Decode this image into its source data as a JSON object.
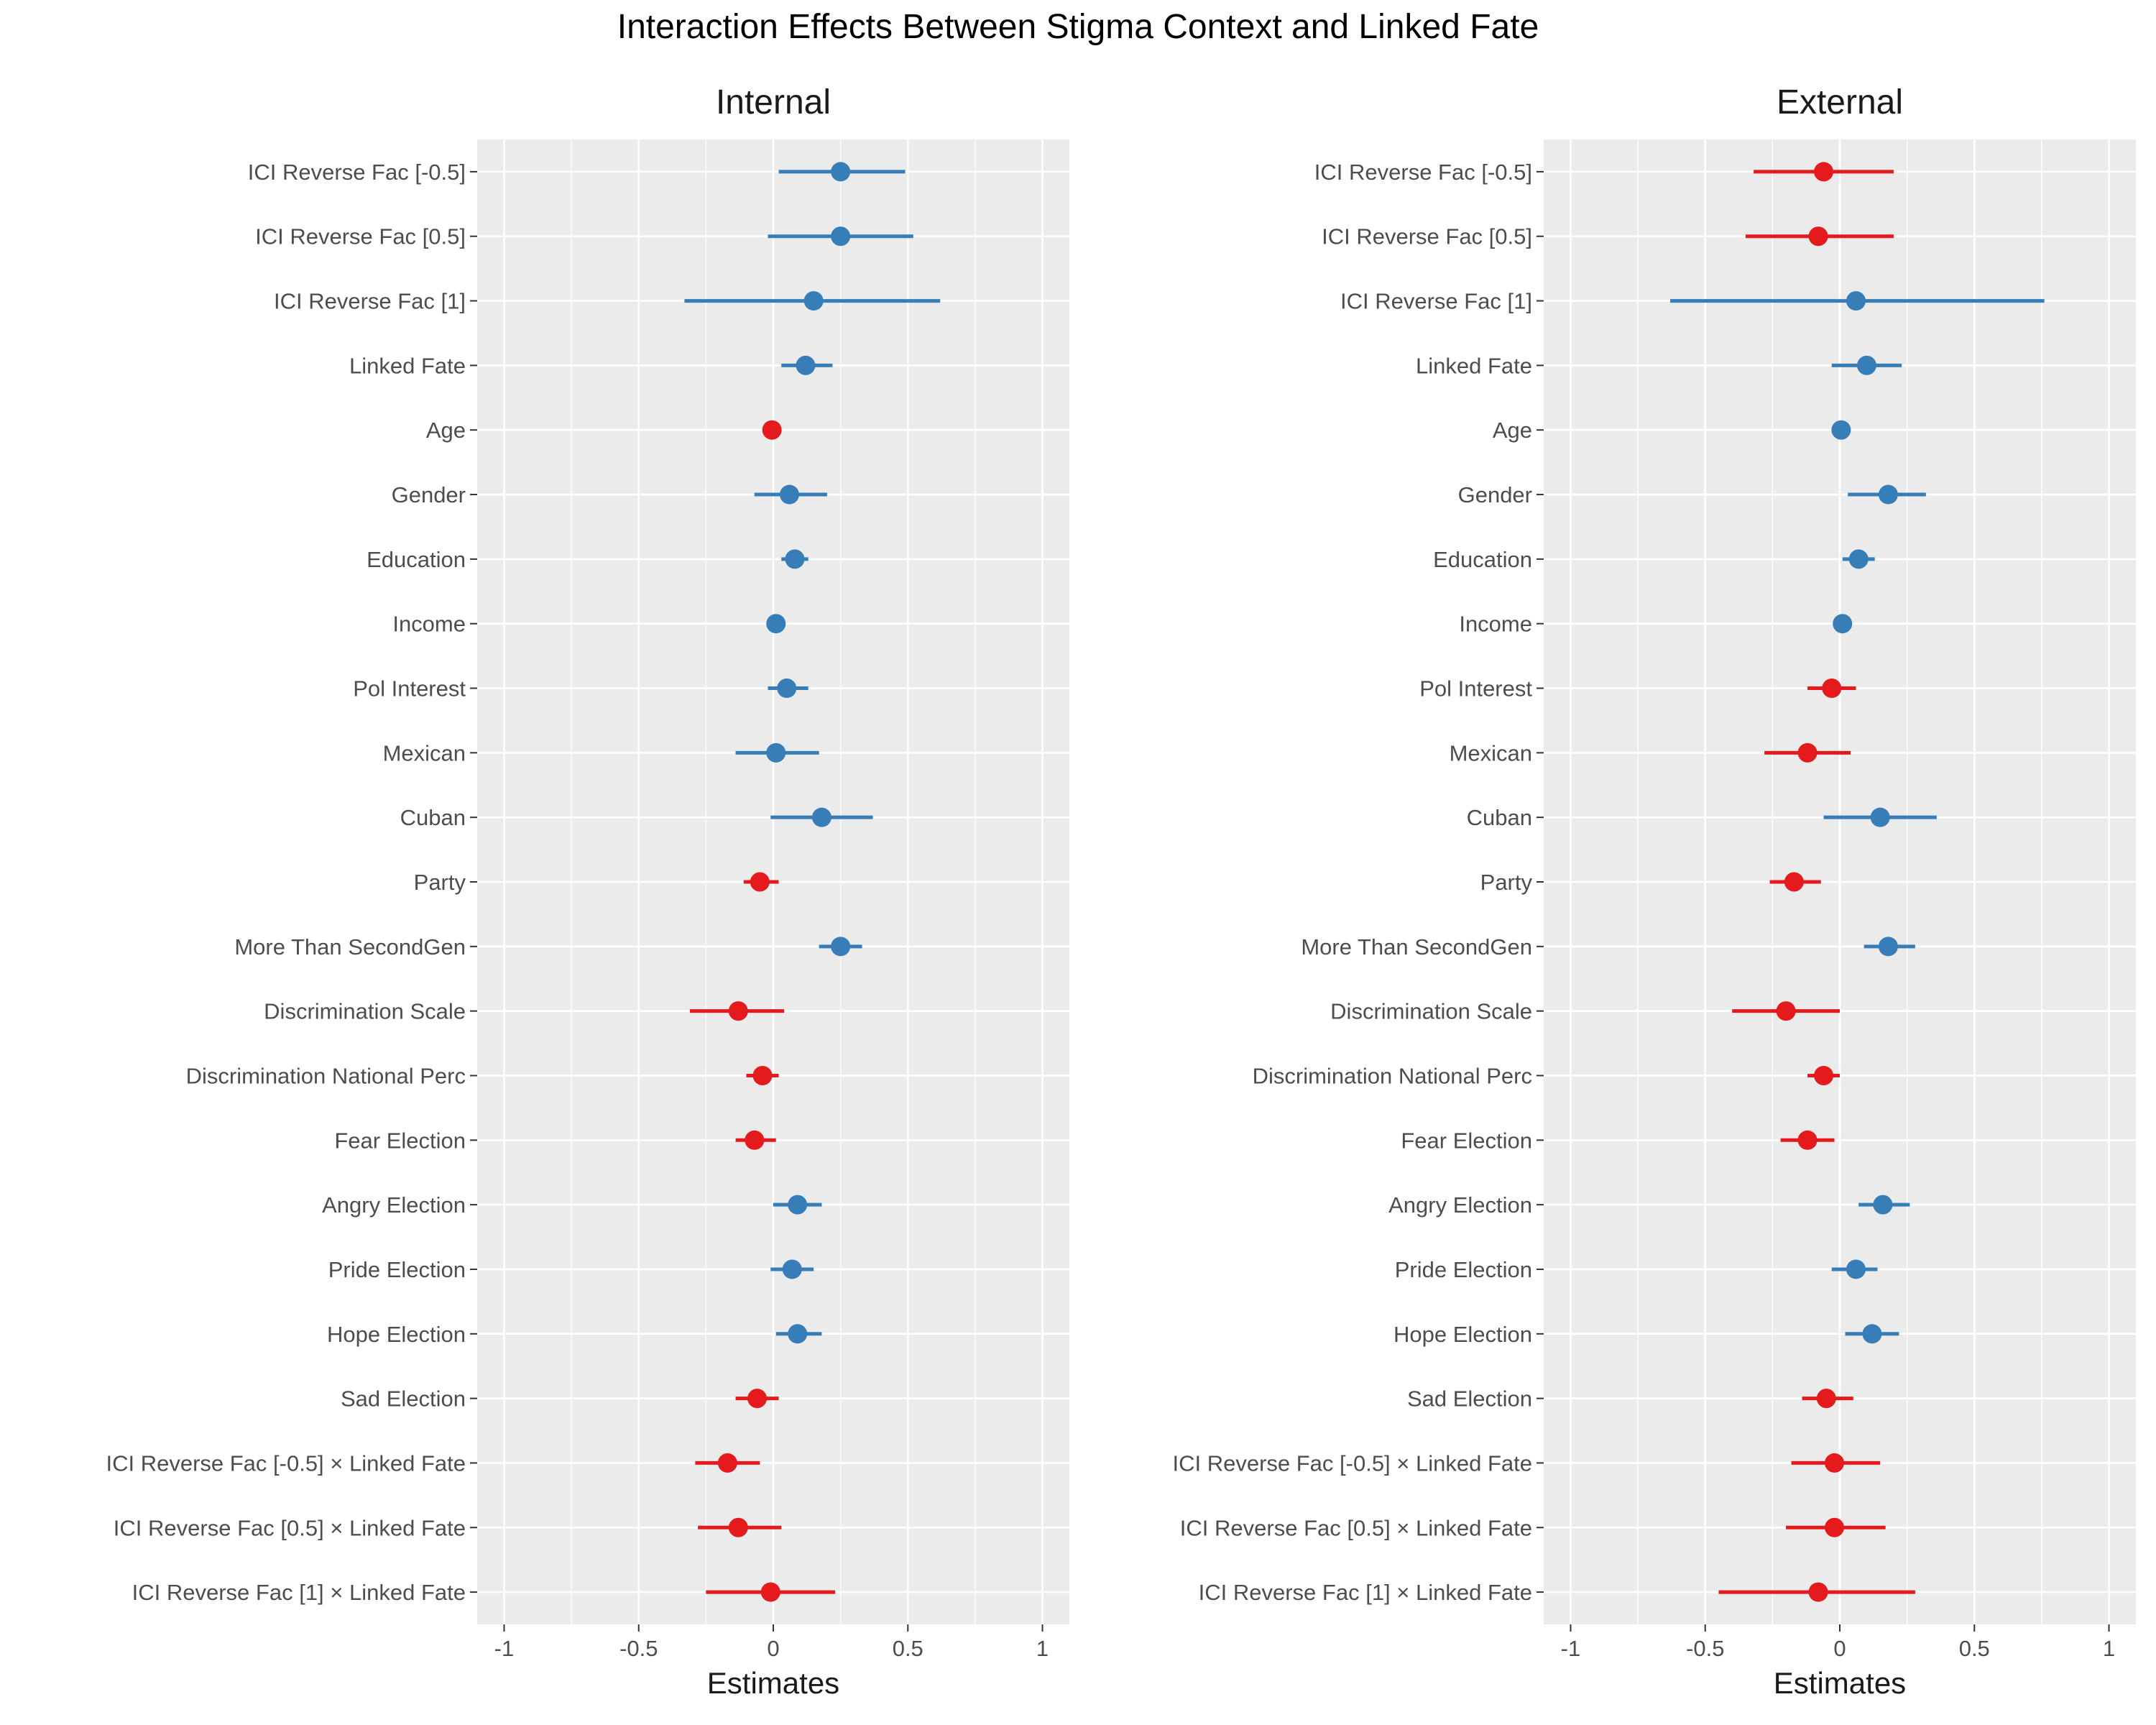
{
  "title": "Interaction Effects Between Stigma Context and Linked Fate",
  "colors": {
    "positive": "#377EB8",
    "negative": "#E41A1C",
    "panel_bg": "#EBEBEB",
    "grid": "#FFFFFF",
    "text": "#4D4D4D"
  },
  "chart_data": [
    {
      "type": "scatter",
      "subtype": "coefficient-dot-and-whisker",
      "title": "Internal",
      "xlabel": "Estimates",
      "xlim": [
        -1.1,
        1.1
      ],
      "xticks": [
        -1,
        -0.5,
        0,
        0.5,
        1
      ],
      "xtick_labels": [
        "-1",
        "-0.5",
        "0",
        "0.5",
        "1"
      ],
      "grid": true,
      "color_rule": "blue if estimate > 0, red if estimate < 0",
      "terms": [
        {
          "label": "ICI Reverse Fac [-0.5]",
          "estimate": 0.25,
          "low": 0.02,
          "high": 0.49
        },
        {
          "label": "ICI Reverse Fac [0.5]",
          "estimate": 0.25,
          "low": -0.02,
          "high": 0.52
        },
        {
          "label": "ICI Reverse Fac [1]",
          "estimate": 0.15,
          "low": -0.33,
          "high": 0.62
        },
        {
          "label": "Linked Fate",
          "estimate": 0.12,
          "low": 0.03,
          "high": 0.22
        },
        {
          "label": "Age",
          "estimate": -0.005,
          "low": -0.01,
          "high": 0.0
        },
        {
          "label": "Gender",
          "estimate": 0.06,
          "low": -0.07,
          "high": 0.2
        },
        {
          "label": "Education",
          "estimate": 0.08,
          "low": 0.03,
          "high": 0.13
        },
        {
          "label": "Income",
          "estimate": 0.01,
          "low": -0.01,
          "high": 0.02
        },
        {
          "label": "Pol Interest",
          "estimate": 0.05,
          "low": -0.02,
          "high": 0.13
        },
        {
          "label": "Mexican",
          "estimate": 0.01,
          "low": -0.14,
          "high": 0.17
        },
        {
          "label": "Cuban",
          "estimate": 0.18,
          "low": -0.01,
          "high": 0.37
        },
        {
          "label": "Party",
          "estimate": -0.05,
          "low": -0.11,
          "high": 0.02
        },
        {
          "label": "More Than SecondGen",
          "estimate": 0.25,
          "low": 0.17,
          "high": 0.33
        },
        {
          "label": "Discrimination Scale",
          "estimate": -0.13,
          "low": -0.31,
          "high": 0.04
        },
        {
          "label": "Discrimination National Perc",
          "estimate": -0.04,
          "low": -0.1,
          "high": 0.02
        },
        {
          "label": "Fear Election",
          "estimate": -0.07,
          "low": -0.14,
          "high": 0.01
        },
        {
          "label": "Angry Election",
          "estimate": 0.09,
          "low": 0.0,
          "high": 0.18
        },
        {
          "label": "Pride Election",
          "estimate": 0.07,
          "low": -0.01,
          "high": 0.15
        },
        {
          "label": "Hope Election",
          "estimate": 0.09,
          "low": 0.01,
          "high": 0.18
        },
        {
          "label": "Sad Election",
          "estimate": -0.06,
          "low": -0.14,
          "high": 0.02
        },
        {
          "label": "ICI Reverse Fac [-0.5] × Linked Fate",
          "estimate": -0.17,
          "low": -0.29,
          "high": -0.05
        },
        {
          "label": "ICI Reverse Fac [0.5] × Linked Fate",
          "estimate": -0.13,
          "low": -0.28,
          "high": 0.03
        },
        {
          "label": "ICI Reverse Fac [1] × Linked Fate",
          "estimate": -0.01,
          "low": -0.25,
          "high": 0.23
        }
      ]
    },
    {
      "type": "scatter",
      "subtype": "coefficient-dot-and-whisker",
      "title": "External",
      "xlabel": "Estimates",
      "xlim": [
        -1.1,
        1.1
      ],
      "xticks": [
        -1,
        -0.5,
        0,
        0.5,
        1
      ],
      "xtick_labels": [
        "-1",
        "-0.5",
        "0",
        "0.5",
        "1"
      ],
      "grid": true,
      "color_rule": "blue if estimate > 0, red if estimate < 0",
      "terms": [
        {
          "label": "ICI Reverse Fac [-0.5]",
          "estimate": -0.06,
          "low": -0.32,
          "high": 0.2
        },
        {
          "label": "ICI Reverse Fac [0.5]",
          "estimate": -0.08,
          "low": -0.35,
          "high": 0.2
        },
        {
          "label": "ICI Reverse Fac [1]",
          "estimate": 0.06,
          "low": -0.63,
          "high": 0.76
        },
        {
          "label": "Linked Fate",
          "estimate": 0.1,
          "low": -0.03,
          "high": 0.23
        },
        {
          "label": "Age",
          "estimate": 0.005,
          "low": 0.0,
          "high": 0.01
        },
        {
          "label": "Gender",
          "estimate": 0.18,
          "low": 0.03,
          "high": 0.32
        },
        {
          "label": "Education",
          "estimate": 0.07,
          "low": 0.01,
          "high": 0.13
        },
        {
          "label": "Income",
          "estimate": 0.01,
          "low": 0.0,
          "high": 0.02
        },
        {
          "label": "Pol Interest",
          "estimate": -0.03,
          "low": -0.12,
          "high": 0.06
        },
        {
          "label": "Mexican",
          "estimate": -0.12,
          "low": -0.28,
          "high": 0.04
        },
        {
          "label": "Cuban",
          "estimate": 0.15,
          "low": -0.06,
          "high": 0.36
        },
        {
          "label": "Party",
          "estimate": -0.17,
          "low": -0.26,
          "high": -0.07
        },
        {
          "label": "More Than SecondGen",
          "estimate": 0.18,
          "low": 0.09,
          "high": 0.28
        },
        {
          "label": "Discrimination Scale",
          "estimate": -0.2,
          "low": -0.4,
          "high": 0.0
        },
        {
          "label": "Discrimination National Perc",
          "estimate": -0.06,
          "low": -0.12,
          "high": 0.0
        },
        {
          "label": "Fear Election",
          "estimate": -0.12,
          "low": -0.22,
          "high": -0.02
        },
        {
          "label": "Angry Election",
          "estimate": 0.16,
          "low": 0.07,
          "high": 0.26
        },
        {
          "label": "Pride Election",
          "estimate": 0.06,
          "low": -0.03,
          "high": 0.14
        },
        {
          "label": "Hope Election",
          "estimate": 0.12,
          "low": 0.02,
          "high": 0.22
        },
        {
          "label": "Sad Election",
          "estimate": -0.05,
          "low": -0.14,
          "high": 0.05
        },
        {
          "label": "ICI Reverse Fac [-0.5] × Linked Fate",
          "estimate": -0.02,
          "low": -0.18,
          "high": 0.15
        },
        {
          "label": "ICI Reverse Fac [0.5] × Linked Fate",
          "estimate": -0.02,
          "low": -0.2,
          "high": 0.17
        },
        {
          "label": "ICI Reverse Fac [1] × Linked Fate",
          "estimate": -0.08,
          "low": -0.45,
          "high": 0.28
        }
      ]
    }
  ]
}
